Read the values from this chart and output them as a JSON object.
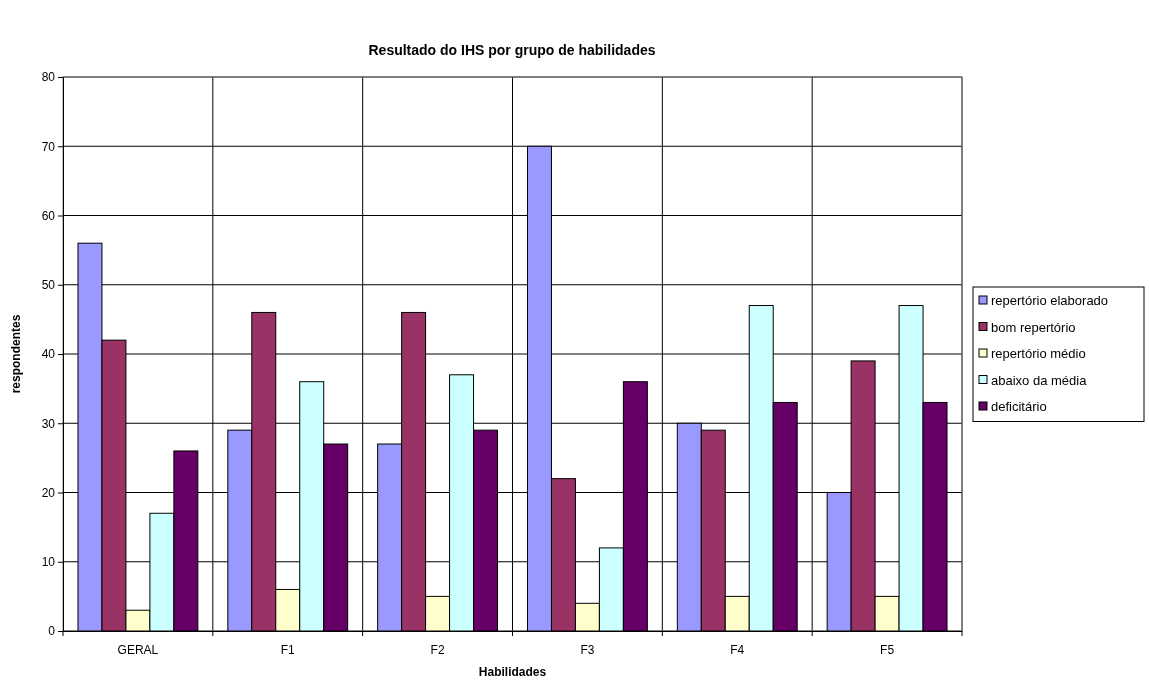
{
  "chart_data": {
    "type": "bar",
    "title": "Resultado do IHS por grupo de habilidades",
    "xlabel": "Habilidades",
    "ylabel": "respondentes",
    "categories": [
      "GERAL",
      "F1",
      "F2",
      "F3",
      "F4",
      "F5"
    ],
    "series": [
      {
        "name": "repertório elaborado",
        "color": "#9999ff",
        "values": [
          56,
          29,
          27,
          70,
          30,
          20
        ]
      },
      {
        "name": "bom repertório",
        "color": "#993366",
        "values": [
          42,
          46,
          46,
          22,
          29,
          39
        ]
      },
      {
        "name": "repertório médio",
        "color": "#ffffcc",
        "values": [
          3,
          6,
          5,
          4,
          5,
          5
        ]
      },
      {
        "name": "abaixo da média",
        "color": "#ccffff",
        "values": [
          17,
          36,
          37,
          12,
          47,
          47
        ]
      },
      {
        "name": "deficitário",
        "color": "#660066",
        "values": [
          26,
          27,
          29,
          36,
          33,
          33
        ]
      }
    ],
    "ylim": [
      0,
      80
    ],
    "yticks": [
      0,
      10,
      20,
      30,
      40,
      50,
      60,
      70,
      80
    ],
    "grid": true,
    "legend": "right"
  }
}
